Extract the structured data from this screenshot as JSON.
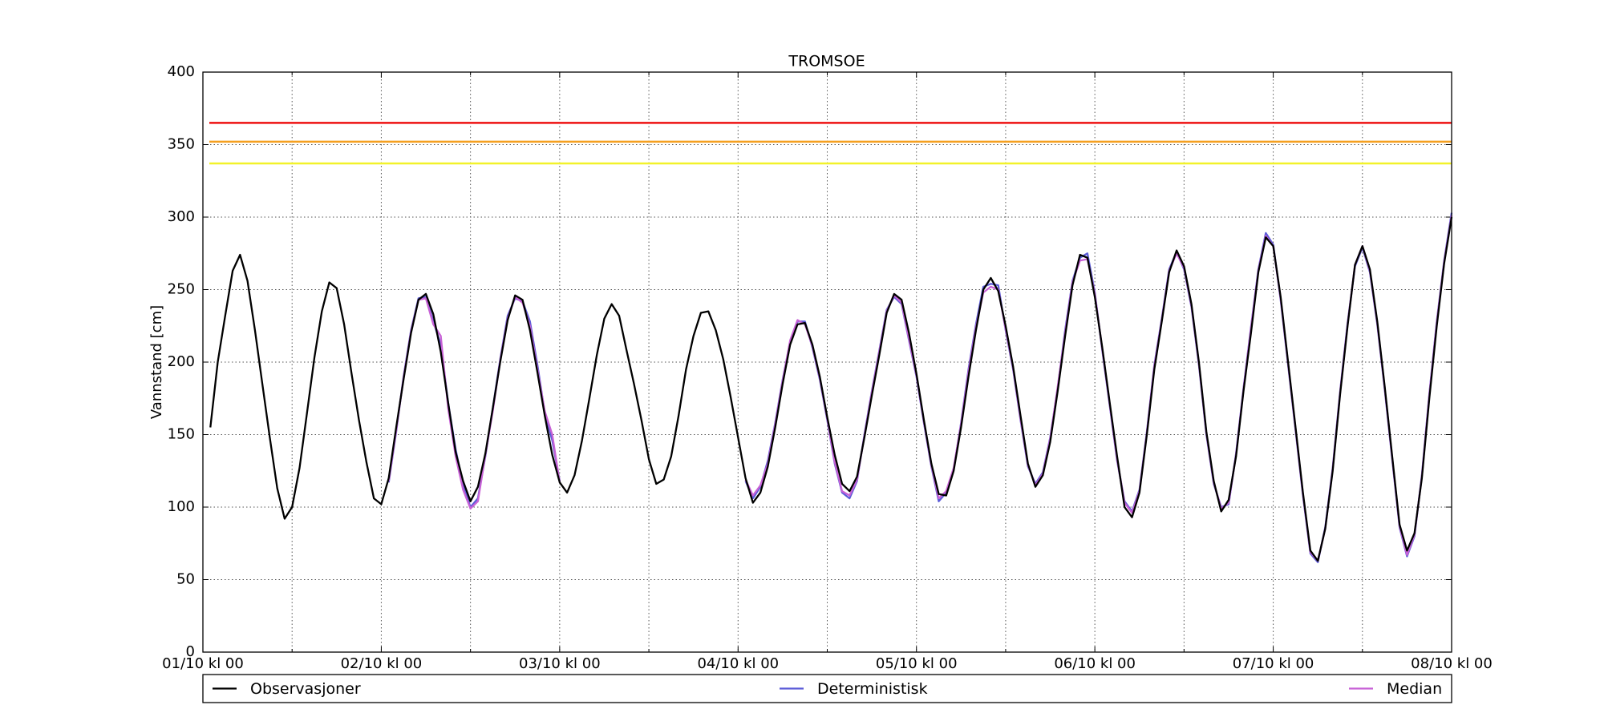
{
  "chart_data": {
    "type": "line",
    "title": "TROMSOE",
    "ylabel": "Vannstand [cm]",
    "xlim": [
      0,
      168
    ],
    "ylim": [
      0,
      400
    ],
    "yticks": [
      0,
      50,
      100,
      150,
      200,
      250,
      300,
      350,
      400
    ],
    "xticks": [
      {
        "value": 0,
        "label": "01/10 kl 00"
      },
      {
        "value": 24,
        "label": "02/10 kl 00"
      },
      {
        "value": 48,
        "label": "03/10 kl 00"
      },
      {
        "value": 72,
        "label": "04/10 kl 00"
      },
      {
        "value": 96,
        "label": "05/10 kl 00"
      },
      {
        "value": 120,
        "label": "06/10 kl 00"
      },
      {
        "value": 144,
        "label": "07/10 kl 00"
      },
      {
        "value": 168,
        "label": "08/10 kl 00"
      }
    ],
    "xticks_minor": [
      12,
      36,
      60,
      84,
      108,
      132,
      156
    ],
    "grid": true,
    "legend": "bottom",
    "thresholds": [
      {
        "value": 365,
        "color": "#ee1111"
      },
      {
        "value": 352,
        "color": "#f5a020"
      },
      {
        "value": 337,
        "color": "#f2f22a"
      }
    ],
    "x": [
      1,
      2,
      3,
      4,
      5,
      6,
      7,
      8,
      9,
      10,
      11,
      12,
      13,
      14,
      15,
      16,
      17,
      18,
      19,
      20,
      21,
      22,
      23,
      24,
      25,
      26,
      27,
      28,
      29,
      30,
      31,
      32,
      33,
      34,
      35,
      36,
      37,
      38,
      39,
      40,
      41,
      42,
      43,
      44,
      45,
      46,
      47,
      48,
      49,
      50,
      51,
      52,
      53,
      54,
      55,
      56,
      57,
      58,
      59,
      60,
      61,
      62,
      63,
      64,
      65,
      66,
      67,
      68,
      69,
      70,
      71,
      72,
      73,
      74,
      75,
      76,
      77,
      78,
      79,
      80,
      81,
      82,
      83,
      84,
      85,
      86,
      87,
      88,
      89,
      90,
      91,
      92,
      93,
      94,
      95,
      96,
      97,
      98,
      99,
      100,
      101,
      102,
      103,
      104,
      105,
      106,
      107,
      108,
      109,
      110,
      111,
      112,
      113,
      114,
      115,
      116,
      117,
      118,
      119,
      120,
      121,
      122,
      123,
      124,
      125,
      126,
      127,
      128,
      129,
      130,
      131,
      132,
      133,
      134,
      135,
      136,
      137,
      138,
      139,
      140,
      141,
      142,
      143,
      144,
      145,
      146,
      147,
      148,
      149,
      150,
      151,
      152,
      153,
      154,
      155,
      156,
      157,
      158,
      159,
      160,
      161,
      162,
      163,
      164,
      165,
      166,
      167,
      168
    ],
    "series": [
      {
        "name": "Deterministisk",
        "color": "#5c5cd8",
        "values": [
          null,
          null,
          null,
          null,
          null,
          null,
          null,
          null,
          null,
          null,
          null,
          null,
          null,
          null,
          null,
          null,
          null,
          null,
          null,
          null,
          null,
          null,
          null,
          null,
          117,
          152,
          190,
          222,
          244,
          245,
          228,
          212,
          172,
          140,
          115,
          100,
          106,
          135,
          168,
          202,
          232,
          244,
          242,
          228,
          198,
          165,
          146,
          118,
          null,
          null,
          null,
          null,
          null,
          null,
          null,
          null,
          null,
          null,
          null,
          null,
          null,
          null,
          null,
          null,
          null,
          null,
          null,
          null,
          null,
          null,
          null,
          null,
          118,
          106,
          114,
          132,
          158,
          188,
          214,
          228,
          228,
          210,
          188,
          160,
          130,
          110,
          106,
          118,
          150,
          180,
          208,
          236,
          245,
          240,
          215,
          190,
          158,
          128,
          104,
          110,
          126,
          158,
          195,
          226,
          252,
          254,
          253,
          222,
          195,
          160,
          128,
          116,
          124,
          148,
          182,
          222,
          256,
          272,
          275,
          248,
          208,
          170,
          132,
          104,
          97,
          112,
          152,
          198,
          230,
          264,
          276,
          264,
          238,
          198,
          150,
          116,
          100,
          102,
          137,
          182,
          224,
          264,
          289,
          281,
          243,
          198,
          153,
          108,
          68,
          62,
          86,
          127,
          180,
          227,
          266,
          279,
          262,
          226,
          181,
          133,
          86,
          66,
          80,
          122,
          178,
          228,
          270,
          303
        ]
      },
      {
        "name": "Median",
        "color": "#c862d6",
        "values": [
          null,
          null,
          null,
          null,
          null,
          null,
          null,
          null,
          null,
          null,
          null,
          null,
          null,
          null,
          null,
          null,
          null,
          null,
          null,
          null,
          null,
          null,
          null,
          null,
          118,
          153,
          189,
          221,
          243,
          244,
          226,
          218,
          168,
          135,
          112,
          99,
          104,
          136,
          166,
          201,
          230,
          245,
          241,
          225,
          195,
          166,
          150,
          117,
          null,
          null,
          null,
          null,
          null,
          null,
          null,
          null,
          null,
          null,
          null,
          null,
          null,
          null,
          null,
          null,
          null,
          null,
          null,
          null,
          null,
          null,
          null,
          null,
          119,
          108,
          115,
          130,
          157,
          187,
          215,
          229,
          226,
          211,
          189,
          161,
          131,
          111,
          108,
          119,
          149,
          179,
          207,
          235,
          246,
          241,
          216,
          191,
          159,
          129,
          106,
          111,
          127,
          157,
          193,
          224,
          248,
          252,
          250,
          223,
          196,
          161,
          129,
          115,
          123,
          147,
          183,
          220,
          255,
          270,
          271,
          247,
          209,
          171,
          133,
          103,
          96,
          111,
          151,
          197,
          229,
          263,
          275,
          265,
          239,
          199,
          151,
          117,
          99,
          103,
          136,
          181,
          223,
          263,
          287,
          280,
          244,
          199,
          154,
          109,
          69,
          63,
          85,
          126,
          179,
          226,
          267,
          280,
          263,
          227,
          182,
          134,
          87,
          67,
          81,
          121,
          177,
          227,
          269,
          301
        ]
      },
      {
        "name": "Observasjoner",
        "color": "#000000",
        "values": [
          155,
          200,
          232,
          263,
          274,
          256,
          222,
          185,
          148,
          113,
          92,
          100,
          127,
          165,
          203,
          235,
          255,
          251,
          226,
          192,
          160,
          131,
          106,
          102,
          120,
          155,
          188,
          220,
          243,
          247,
          233,
          207,
          172,
          138,
          118,
          104,
          114,
          137,
          168,
          200,
          229,
          246,
          243,
          222,
          193,
          163,
          136,
          117,
          110,
          122,
          146,
          175,
          205,
          230,
          240,
          232,
          208,
          185,
          160,
          133,
          116,
          119,
          135,
          163,
          195,
          218,
          234,
          235,
          222,
          202,
          176,
          148,
          120,
          103,
          110,
          128,
          155,
          185,
          212,
          226,
          227,
          212,
          190,
          162,
          136,
          116,
          111,
          121,
          148,
          177,
          205,
          234,
          247,
          243,
          220,
          192,
          160,
          130,
          109,
          108,
          125,
          155,
          190,
          222,
          250,
          258,
          249,
          225,
          197,
          163,
          130,
          114,
          122,
          145,
          180,
          218,
          253,
          274,
          272,
          245,
          210,
          172,
          135,
          100,
          93,
          110,
          150,
          195,
          228,
          262,
          277,
          266,
          240,
          200,
          152,
          118,
          97,
          105,
          135,
          180,
          220,
          262,
          286,
          280,
          245,
          200,
          155,
          110,
          70,
          63,
          85,
          125,
          178,
          225,
          267,
          280,
          264,
          228,
          183,
          135,
          88,
          70,
          82,
          120,
          175,
          225,
          268,
          300
        ]
      }
    ],
    "legend_order": [
      2,
      0,
      1
    ]
  }
}
